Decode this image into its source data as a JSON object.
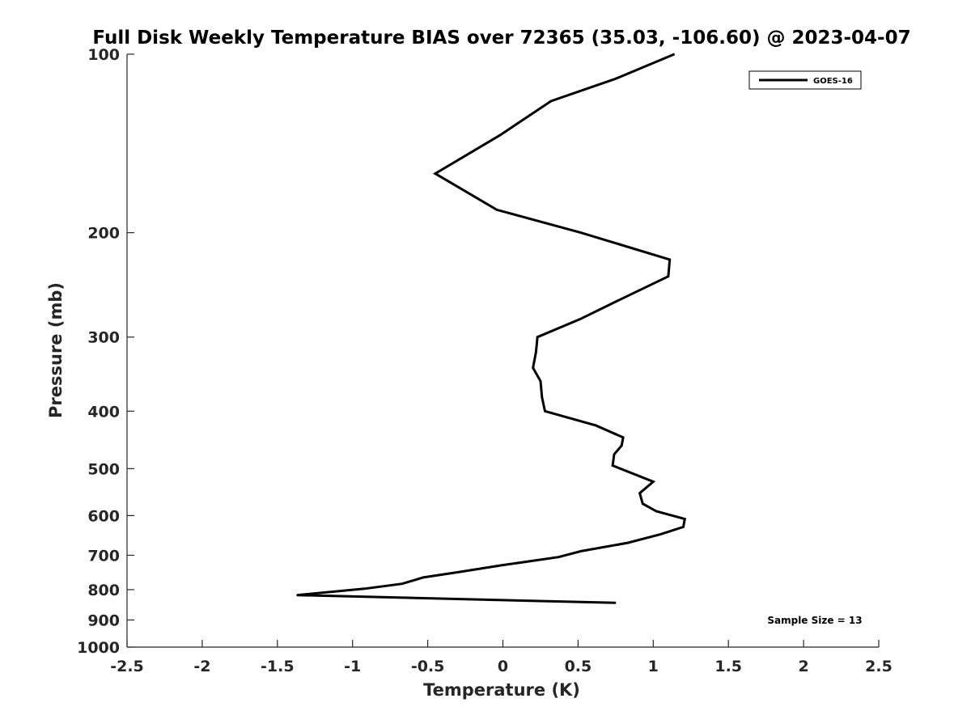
{
  "chart_data": {
    "type": "line",
    "title": "Full Disk Weekly Temperature BIAS over 72365 (35.03, -106.60) @ 2023-04-07",
    "xlabel": "Temperature (K)",
    "ylabel": "Pressure (mb)",
    "xlim": [
      -2.5,
      2.5
    ],
    "ylim": [
      100,
      1000
    ],
    "y_scale": "log",
    "y_reversed": true,
    "grid": false,
    "legend_position": "top-right",
    "x_ticks": [
      "-2.5",
      "-2",
      "-1.5",
      "-1",
      "-0.5",
      "0",
      "0.5",
      "1",
      "1.5",
      "2",
      "2.5"
    ],
    "y_ticks": [
      "100",
      "200",
      "300",
      "400",
      "500",
      "600",
      "700",
      "800",
      "900",
      "1000"
    ],
    "series": [
      {
        "name": "GOES-16",
        "color": "#000000",
        "points": [
          {
            "x": 1.14,
            "y": 100
          },
          {
            "x": 0.75,
            "y": 110
          },
          {
            "x": 0.32,
            "y": 120
          },
          {
            "x": -0.02,
            "y": 137
          },
          {
            "x": -0.45,
            "y": 159
          },
          {
            "x": -0.04,
            "y": 183
          },
          {
            "x": 0.52,
            "y": 200
          },
          {
            "x": 1.11,
            "y": 222
          },
          {
            "x": 1.1,
            "y": 237
          },
          {
            "x": 0.77,
            "y": 260
          },
          {
            "x": 0.51,
            "y": 280
          },
          {
            "x": 0.23,
            "y": 300
          },
          {
            "x": 0.22,
            "y": 318
          },
          {
            "x": 0.2,
            "y": 338
          },
          {
            "x": 0.25,
            "y": 356
          },
          {
            "x": 0.26,
            "y": 379
          },
          {
            "x": 0.28,
            "y": 400
          },
          {
            "x": 0.62,
            "y": 423
          },
          {
            "x": 0.8,
            "y": 443
          },
          {
            "x": 0.79,
            "y": 457
          },
          {
            "x": 0.74,
            "y": 473
          },
          {
            "x": 0.73,
            "y": 494
          },
          {
            "x": 1.0,
            "y": 526
          },
          {
            "x": 0.91,
            "y": 550
          },
          {
            "x": 0.93,
            "y": 573
          },
          {
            "x": 1.02,
            "y": 590
          },
          {
            "x": 1.21,
            "y": 608
          },
          {
            "x": 1.2,
            "y": 627
          },
          {
            "x": 1.05,
            "y": 645
          },
          {
            "x": 0.83,
            "y": 667
          },
          {
            "x": 0.52,
            "y": 689
          },
          {
            "x": 0.37,
            "y": 705
          },
          {
            "x": -0.01,
            "y": 728
          },
          {
            "x": -0.29,
            "y": 747
          },
          {
            "x": -0.53,
            "y": 763
          },
          {
            "x": -0.67,
            "y": 782
          },
          {
            "x": -0.92,
            "y": 797
          },
          {
            "x": -1.37,
            "y": 817
          },
          {
            "x": 0.75,
            "y": 842
          }
        ]
      }
    ],
    "annotations": [
      "Sample Size = 13"
    ]
  }
}
